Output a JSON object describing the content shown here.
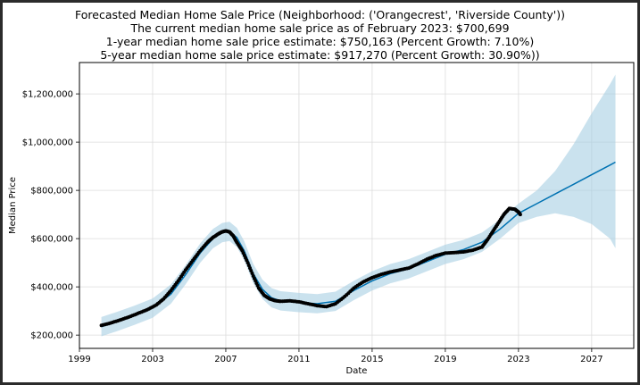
{
  "chart_data": {
    "type": "line",
    "title_lines": [
      "Forecasted Median Home Sale Price (Neighborhood: ('Orangecrest', 'Riverside County'))",
      "The current median home sale price as of February 2023: $700,699",
      "1-year median home sale price estimate: $750,163 (Percent Growth: 7.10%)",
      "5-year median home sale price estimate: $917,270 (Percent Growth: 30.90%))"
    ],
    "xlabel": "Date",
    "ylabel": "Median Price",
    "xlim": [
      1999.0,
      2029.3
    ],
    "ylim": [
      145000,
      1330000
    ],
    "x_ticks": [
      1999,
      2003,
      2007,
      2011,
      2015,
      2019,
      2023,
      2027
    ],
    "x_tick_labels": [
      "1999",
      "2003",
      "2007",
      "2011",
      "2015",
      "2019",
      "2023",
      "2027"
    ],
    "y_ticks": [
      200000,
      400000,
      600000,
      800000,
      1000000,
      1200000
    ],
    "y_tick_labels": [
      "$200,000",
      "$400,000",
      "$600,000",
      "$800,000",
      "$1,000,000",
      "$1,200,000"
    ],
    "grid": true,
    "colors": {
      "observed": "#000000",
      "forecast": "#0072b2",
      "interval": "#a6cee3"
    },
    "series": [
      {
        "kind": "observed",
        "x": [
          2000.2,
          2000.7,
          2001.2,
          2001.7,
          2002.2,
          2002.7,
          2003.2,
          2003.6,
          2004.0,
          2004.4,
          2004.8,
          2005.2,
          2005.6,
          2006.0,
          2006.3,
          2006.6,
          2006.8,
          2007.0,
          2007.2,
          2007.4,
          2007.6,
          2007.9,
          2008.2,
          2008.5,
          2008.8,
          2009.1,
          2009.4,
          2009.7,
          2010.0,
          2010.5,
          2011.0,
          2011.5,
          2012.0,
          2012.5,
          2013.0,
          2013.5,
          2014.0,
          2014.5,
          2015.0,
          2015.5,
          2016.0,
          2016.5,
          2017.0,
          2017.5,
          2018.0,
          2018.5,
          2019.0,
          2019.5,
          2020.0,
          2020.5,
          2021.0,
          2021.3,
          2021.6,
          2021.9,
          2022.2,
          2022.5,
          2022.8,
          2023.0,
          2023.1
        ],
        "y": [
          240000,
          250000,
          262000,
          275000,
          290000,
          305000,
          325000,
          350000,
          385000,
          425000,
          470000,
          510000,
          550000,
          585000,
          605000,
          620000,
          628000,
          632000,
          628000,
          612000,
          585000,
          550000,
          500000,
          445000,
          395000,
          365000,
          350000,
          343000,
          340000,
          342000,
          338000,
          330000,
          322000,
          318000,
          330000,
          360000,
          395000,
          420000,
          438000,
          452000,
          462000,
          470000,
          478000,
          495000,
          515000,
          530000,
          540000,
          542000,
          545000,
          552000,
          565000,
          595000,
          630000,
          665000,
          700000,
          725000,
          722000,
          710000,
          700000
        ]
      },
      {
        "kind": "forecast",
        "x": [
          2000.2,
          2001.0,
          2002.0,
          2003.0,
          2004.0,
          2004.8,
          2005.6,
          2006.3,
          2006.8,
          2007.2,
          2007.6,
          2008.0,
          2008.5,
          2009.0,
          2009.5,
          2010.0,
          2011.0,
          2012.0,
          2013.0,
          2014.0,
          2015.0,
          2016.0,
          2017.0,
          2018.0,
          2019.0,
          2020.0,
          2021.0,
          2022.0,
          2023.0,
          2024.0,
          2025.0,
          2026.0,
          2027.0,
          2028.0,
          2028.3
        ],
        "y": [
          235000,
          255000,
          282000,
          312000,
          370000,
          450000,
          540000,
          600000,
          625000,
          630000,
          605000,
          550000,
          455000,
          390000,
          355000,
          342000,
          335000,
          330000,
          340000,
          385000,
          425000,
          455000,
          475000,
          505000,
          535000,
          555000,
          585000,
          640000,
          705000,
          745000,
          785000,
          825000,
          865000,
          905000,
          917000
        ],
        "lower": [
          195000,
          215000,
          242000,
          272000,
          330000,
          410000,
          500000,
          560000,
          585000,
          590000,
          565000,
          510000,
          415000,
          350000,
          315000,
          302000,
          295000,
          290000,
          300000,
          345000,
          385000,
          415000,
          435000,
          465000,
          495000,
          515000,
          545000,
          600000,
          665000,
          690000,
          705000,
          690000,
          660000,
          600000,
          560000
        ],
        "upper": [
          275000,
          295000,
          322000,
          352000,
          410000,
          490000,
          580000,
          640000,
          665000,
          670000,
          645000,
          590000,
          495000,
          430000,
          395000,
          382000,
          375000,
          370000,
          380000,
          425000,
          465000,
          495000,
          515000,
          545000,
          575000,
          595000,
          625000,
          680000,
          745000,
          800000,
          880000,
          990000,
          1120000,
          1240000,
          1280000
        ]
      }
    ]
  }
}
